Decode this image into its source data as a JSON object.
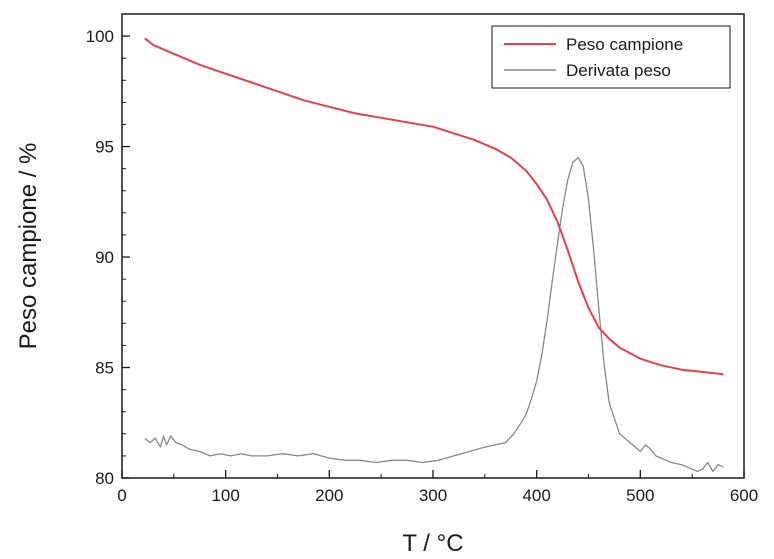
{
  "chart_data": {
    "type": "line",
    "xlabel": "T / °C",
    "ylabel": "Peso campione / %",
    "xlim": [
      0,
      600
    ],
    "ylim": [
      80,
      101
    ],
    "x_ticks": [
      0,
      100,
      200,
      300,
      400,
      500,
      600
    ],
    "y_ticks": [
      80,
      85,
      90,
      95,
      100
    ],
    "x_tick_labels": [
      "0",
      "100",
      "200",
      "300",
      "400",
      "500",
      "600"
    ],
    "y_tick_labels": [
      "80",
      "85",
      "90",
      "95",
      "100"
    ],
    "grid": false,
    "legend_position": "top-right",
    "series": [
      {
        "name": "Peso campione",
        "color": "#e8404a",
        "x": [
          22,
          30,
          50,
          75,
          100,
          125,
          150,
          175,
          200,
          225,
          250,
          275,
          300,
          320,
          340,
          360,
          375,
          390,
          400,
          410,
          420,
          430,
          440,
          450,
          460,
          470,
          480,
          500,
          520,
          540,
          560,
          580
        ],
        "values": [
          99.9,
          99.6,
          99.2,
          98.7,
          98.3,
          97.9,
          97.5,
          97.1,
          96.8,
          96.5,
          96.3,
          96.1,
          95.9,
          95.6,
          95.3,
          94.9,
          94.5,
          93.9,
          93.3,
          92.6,
          91.6,
          90.3,
          88.9,
          87.7,
          86.8,
          86.3,
          85.9,
          85.4,
          85.1,
          84.9,
          84.8,
          84.7
        ]
      },
      {
        "name": "Derivata peso",
        "color": "#888888",
        "x": [
          22,
          27,
          32,
          37,
          40,
          43,
          47,
          52,
          58,
          65,
          75,
          85,
          95,
          105,
          115,
          125,
          140,
          155,
          170,
          185,
          200,
          215,
          230,
          245,
          260,
          275,
          290,
          305,
          320,
          335,
          350,
          360,
          370,
          378,
          385,
          390,
          395,
          400,
          405,
          410,
          415,
          420,
          425,
          430,
          435,
          440,
          445,
          450,
          455,
          460,
          465,
          470,
          480,
          490,
          500,
          505,
          510,
          515,
          520,
          530,
          540,
          550,
          555,
          560,
          565,
          570,
          575,
          580
        ],
        "values": [
          81.8,
          81.6,
          81.8,
          81.4,
          81.9,
          81.5,
          81.9,
          81.6,
          81.5,
          81.3,
          81.2,
          81.0,
          81.1,
          81.0,
          81.1,
          81.0,
          81.0,
          81.1,
          81.0,
          81.1,
          80.9,
          80.8,
          80.8,
          80.7,
          80.8,
          80.8,
          80.7,
          80.8,
          81.0,
          81.2,
          81.4,
          81.5,
          81.6,
          82.0,
          82.5,
          82.9,
          83.6,
          84.4,
          85.6,
          87.1,
          88.9,
          90.6,
          92.2,
          93.5,
          94.3,
          94.5,
          94.1,
          92.6,
          90.3,
          87.6,
          85.2,
          83.4,
          82.0,
          81.6,
          81.2,
          81.5,
          81.3,
          81.0,
          80.9,
          80.7,
          80.6,
          80.4,
          80.3,
          80.4,
          80.7,
          80.3,
          80.6,
          80.5
        ]
      }
    ]
  }
}
